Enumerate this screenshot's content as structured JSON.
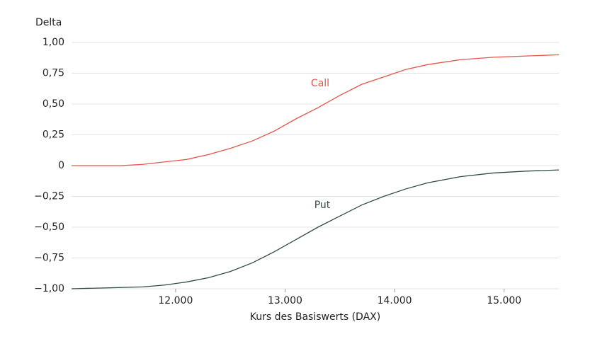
{
  "chart_data": {
    "type": "line",
    "y_label": "Delta",
    "x_label": "Kurs des Basiswerts (DAX)",
    "x": [
      11050,
      11500,
      11700,
      11900,
      12100,
      12300,
      12500,
      12700,
      12900,
      13100,
      13300,
      13500,
      13700,
      13900,
      14100,
      14300,
      14600,
      14900,
      15200,
      15500
    ],
    "series": [
      {
        "name": "Call",
        "color": "#e8534a",
        "values": [
          0,
          0,
          0.01,
          0.03,
          0.05,
          0.09,
          0.14,
          0.2,
          0.28,
          0.38,
          0.47,
          0.57,
          0.66,
          0.72,
          0.78,
          0.82,
          0.86,
          0.88,
          0.89,
          0.9
        ]
      },
      {
        "name": "Put",
        "color": "#2f4a47",
        "values": [
          -1,
          -0.99,
          -0.985,
          -0.97,
          -0.945,
          -0.91,
          -0.86,
          -0.79,
          -0.7,
          -0.6,
          -0.5,
          -0.41,
          -0.32,
          -0.25,
          -0.19,
          -0.14,
          -0.09,
          -0.06,
          -0.045,
          -0.035
        ]
      }
    ],
    "xlim": [
      11050,
      15500
    ],
    "ylim": [
      -1,
      1
    ],
    "xticks": [
      {
        "value": 12000,
        "label": "12.000"
      },
      {
        "value": 13000,
        "label": "13.000"
      },
      {
        "value": 14000,
        "label": "14.000"
      },
      {
        "value": 15000,
        "label": "15.000"
      }
    ],
    "yticks": [
      {
        "value": -1,
        "label": "−1,00"
      },
      {
        "value": -0.75,
        "label": "−0,75"
      },
      {
        "value": -0.5,
        "label": "−0,50"
      },
      {
        "value": -0.25,
        "label": "−0,25"
      },
      0,
      {
        "value": 0.25,
        "label": "0,25"
      },
      {
        "value": 0.5,
        "label": "0,50"
      },
      {
        "value": 0.75,
        "label": "0,75"
      },
      {
        "value": 1,
        "label": "1,00"
      }
    ],
    "grid": true
  }
}
